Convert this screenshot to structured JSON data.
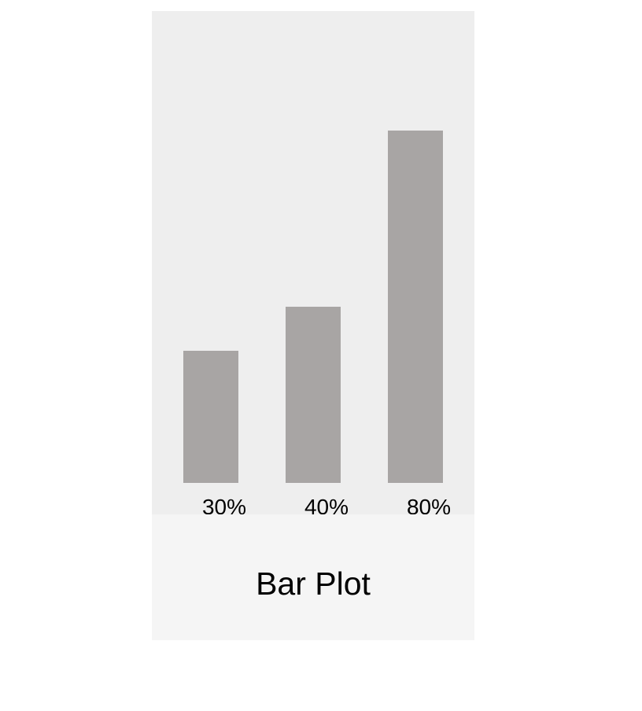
{
  "chart_data": {
    "type": "bar",
    "title": "Bar Plot",
    "categories": [
      "30%",
      "40%",
      "80%"
    ],
    "values": [
      30,
      40,
      80
    ],
    "ylim": [
      0,
      100
    ],
    "grid": false,
    "colors": {
      "bar": "#a8a5a4",
      "plot_background": "#eeeeee",
      "caption_background": "#f5f5f5"
    }
  }
}
